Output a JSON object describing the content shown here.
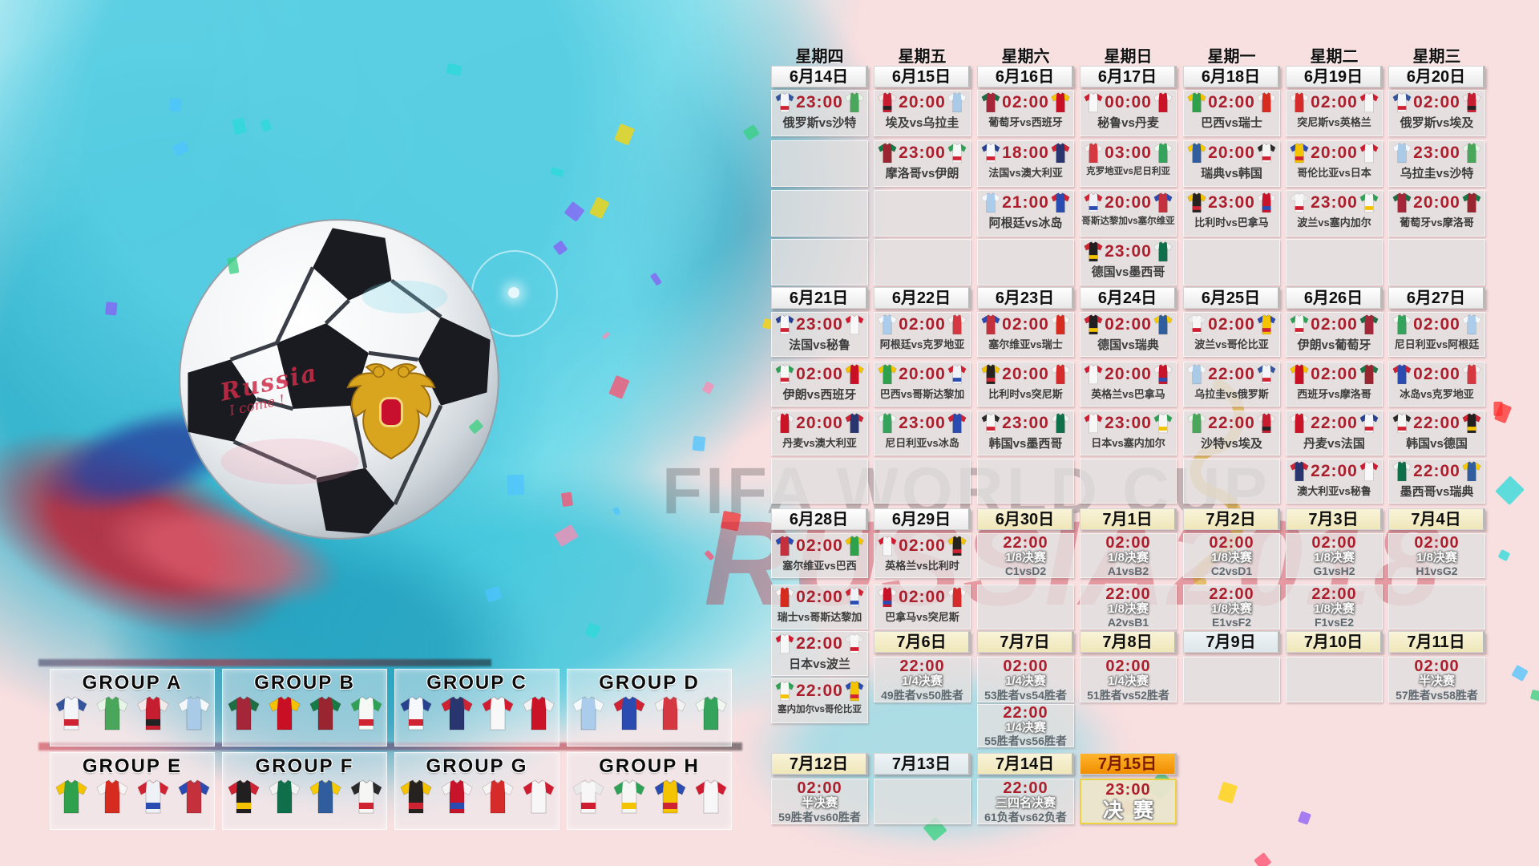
{
  "watermark": {
    "line1": "FIFA WORLD CUP",
    "line2": "RUSSIA2018"
  },
  "ball_text": {
    "line1": "Russia",
    "line2": "I come !"
  },
  "vs": "vs",
  "weekdays": [
    "星期四",
    "星期五",
    "星期六",
    "星期日",
    "星期一",
    "星期二",
    "星期三"
  ],
  "colors": {
    "time_red": "#ab1f2d",
    "header_orange": "#f59b1e",
    "knockout_cream": "#f3edcb",
    "cell_gray": "#e2dfdf",
    "pink_bg": "#f8dfe0",
    "cyan": "#5bcde0",
    "final_border": "#ecd23f"
  },
  "week1": {
    "dates": [
      [
        "6月14日",
        "plain"
      ],
      [
        "6月15日",
        "plain"
      ],
      [
        "6月16日",
        "plain"
      ],
      [
        "6月17日",
        "plain"
      ],
      [
        "6月18日",
        "plain"
      ],
      [
        "6月19日",
        "plain"
      ],
      [
        "6月20日",
        "plain"
      ]
    ],
    "rows": [
      [
        {
          "t": "23:00",
          "h": "俄罗斯",
          "a": "沙特"
        },
        {
          "t": "20:00",
          "h": "埃及",
          "a": "乌拉圭"
        },
        {
          "t": "02:00",
          "h": "葡萄牙",
          "a": "西班牙"
        },
        {
          "t": "00:00",
          "h": "秘鲁",
          "a": "丹麦"
        },
        {
          "t": "02:00",
          "h": "巴西",
          "a": "瑞士"
        },
        {
          "t": "02:00",
          "h": "突尼斯",
          "a": "英格兰"
        },
        {
          "t": "02:00",
          "h": "俄罗斯",
          "a": "埃及"
        }
      ],
      [
        {
          "e": 1
        },
        {
          "t": "23:00",
          "h": "摩洛哥",
          "a": "伊朗"
        },
        {
          "t": "18:00",
          "h": "法国",
          "a": "澳大利亚"
        },
        {
          "t": "03:00",
          "h": "克罗地亚",
          "a": "尼日利亚"
        },
        {
          "t": "20:00",
          "h": "瑞典",
          "a": "韩国"
        },
        {
          "t": "20:00",
          "h": "哥伦比亚",
          "a": "日本"
        },
        {
          "t": "23:00",
          "h": "乌拉圭",
          "a": "沙特"
        }
      ],
      [
        {
          "e": 1
        },
        {
          "e": 1
        },
        {
          "t": "21:00",
          "h": "阿根廷",
          "a": "冰岛"
        },
        {
          "t": "20:00",
          "h": "哥斯达黎加",
          "a": "塞尔维亚"
        },
        {
          "t": "23:00",
          "h": "比利时",
          "a": "巴拿马"
        },
        {
          "t": "23:00",
          "h": "波兰",
          "a": "塞内加尔"
        },
        {
          "t": "20:00",
          "h": "葡萄牙",
          "a": "摩洛哥"
        }
      ],
      [
        {
          "e": 1
        },
        {
          "e": 1
        },
        {
          "e": 1
        },
        {
          "t": "23:00",
          "h": "德国",
          "a": "墨西哥"
        },
        {
          "e": 1
        },
        {
          "e": 1
        },
        {
          "e": 1
        }
      ]
    ]
  },
  "week2": {
    "dates": [
      [
        "6月21日",
        "plain"
      ],
      [
        "6月22日",
        "plain"
      ],
      [
        "6月23日",
        "plain"
      ],
      [
        "6月24日",
        "plain"
      ],
      [
        "6月25日",
        "plain"
      ],
      [
        "6月26日",
        "plain"
      ],
      [
        "6月27日",
        "plain"
      ]
    ],
    "rows": [
      [
        {
          "t": "23:00",
          "h": "法国",
          "a": "秘鲁"
        },
        {
          "t": "02:00",
          "h": "阿根廷",
          "a": "克罗地亚"
        },
        {
          "t": "02:00",
          "h": "塞尔维亚",
          "a": "瑞士"
        },
        {
          "t": "02:00",
          "h": "德国",
          "a": "瑞典"
        },
        {
          "t": "02:00",
          "h": "波兰",
          "a": "哥伦比亚"
        },
        {
          "t": "02:00",
          "h": "伊朗",
          "a": "葡萄牙"
        },
        {
          "t": "02:00",
          "h": "尼日利亚",
          "a": "阿根廷"
        }
      ],
      [
        {
          "t": "02:00",
          "h": "伊朗",
          "a": "西班牙"
        },
        {
          "t": "20:00",
          "h": "巴西",
          "a": "哥斯达黎加"
        },
        {
          "t": "20:00",
          "h": "比利时",
          "a": "突尼斯"
        },
        {
          "t": "20:00",
          "h": "英格兰",
          "a": "巴拿马"
        },
        {
          "t": "22:00",
          "h": "乌拉圭",
          "a": "俄罗斯"
        },
        {
          "t": "02:00",
          "h": "西班牙",
          "a": "摩洛哥"
        },
        {
          "t": "02:00",
          "h": "冰岛",
          "a": "克罗地亚"
        }
      ],
      [
        {
          "t": "20:00",
          "h": "丹麦",
          "a": "澳大利亚"
        },
        {
          "t": "23:00",
          "h": "尼日利亚",
          "a": "冰岛"
        },
        {
          "t": "23:00",
          "h": "韩国",
          "a": "墨西哥"
        },
        {
          "t": "23:00",
          "h": "日本",
          "a": "塞内加尔"
        },
        {
          "t": "22:00",
          "h": "沙特",
          "a": "埃及"
        },
        {
          "t": "22:00",
          "h": "丹麦",
          "a": "法国"
        },
        {
          "t": "22:00",
          "h": "韩国",
          "a": "德国"
        }
      ],
      [
        {
          "e": 1
        },
        {
          "e": 1
        },
        {
          "e": 1
        },
        {
          "e": 1
        },
        {
          "e": 1
        },
        {
          "t": "22:00",
          "h": "澳大利亚",
          "a": "秘鲁"
        },
        {
          "t": "22:00",
          "h": "墨西哥",
          "a": "瑞典"
        }
      ]
    ]
  },
  "week3": {
    "dates": [
      [
        "6月28日",
        "plain"
      ],
      [
        "6月29日",
        "plain"
      ],
      [
        "6月30日",
        "cream"
      ],
      [
        "7月1日",
        "cream"
      ],
      [
        "7月2日",
        "cream"
      ],
      [
        "7月3日",
        "cream"
      ],
      [
        "7月4日",
        "cream"
      ]
    ],
    "rows": [
      [
        {
          "t": "02:00",
          "h": "塞尔维亚",
          "a": "巴西"
        },
        {
          "t": "02:00",
          "h": "英格兰",
          "a": "比利时"
        },
        {
          "t": "22:00",
          "s": "1/8决赛",
          "c": "C1vsD2"
        },
        {
          "t": "02:00",
          "s": "1/8决赛",
          "c": "A1vsB2"
        },
        {
          "t": "02:00",
          "s": "1/8决赛",
          "c": "C2vsD1"
        },
        {
          "t": "02:00",
          "s": "1/8决赛",
          "c": "G1vsH2"
        },
        {
          "t": "02:00",
          "s": "1/8决赛",
          "c": "H1vsG2"
        }
      ],
      [
        {
          "t": "02:00",
          "h": "瑞士",
          "a": "哥斯达黎加"
        },
        {
          "t": "02:00",
          "h": "巴拿马",
          "a": "突尼斯"
        },
        {
          "e": 1
        },
        {
          "t": "22:00",
          "s": "1/8决赛",
          "c": "A2vsB1"
        },
        {
          "t": "22:00",
          "s": "1/8决赛",
          "c": "E1vsF2"
        },
        {
          "t": "22:00",
          "s": "1/8决赛",
          "c": "F1vsE2"
        },
        {
          "e": 1
        }
      ]
    ]
  },
  "week3_ext": [
    {
      "t": "22:00",
      "h": "日本",
      "a": "波兰"
    },
    {
      "t": "22:00",
      "h": "塞内加尔",
      "a": "哥伦比亚"
    }
  ],
  "july6": {
    "dates": [
      [
        "7月6日",
        "cream"
      ],
      [
        "7月7日",
        "cream"
      ],
      [
        "7月8日",
        "cream"
      ],
      [
        "7月9日",
        "plain2"
      ],
      [
        "7月10日",
        "cream"
      ],
      [
        "7月11日",
        "cream"
      ]
    ],
    "row1": [
      {
        "t": "22:00",
        "s": "1/4决赛",
        "c": "49胜者vs50胜者"
      },
      {
        "t": "02:00",
        "s": "1/4决赛",
        "c": "53胜者vs54胜者"
      },
      {
        "t": "02:00",
        "s": "1/4决赛",
        "c": "51胜者vs52胜者"
      },
      {
        "e": 1
      },
      {
        "e": 1
      },
      {
        "t": "02:00",
        "s": "半决赛",
        "c": "57胜者vs58胜者"
      }
    ],
    "row2": [
      null,
      {
        "t": "22:00",
        "s": "1/4决赛",
        "c": "55胜者vs56胜者"
      },
      null,
      null,
      null,
      null
    ]
  },
  "july12": {
    "dates": [
      [
        "7月12日",
        "cream"
      ],
      [
        "7月13日",
        "plain2"
      ],
      [
        "7月14日",
        "cream"
      ],
      [
        "7月15日",
        "orange"
      ]
    ],
    "row": [
      {
        "t": "02:00",
        "s": "半决赛",
        "c": "59胜者vs60胜者"
      },
      {
        "e": 1
      },
      {
        "t": "22:00",
        "s": "三四名决赛",
        "c": "61负者vs62负者"
      },
      {
        "t": "23:00",
        "s": "决赛",
        "f": 1
      }
    ]
  },
  "groups": [
    {
      "name": "GROUP A",
      "teams": [
        "俄罗斯",
        "沙特",
        "埃及",
        "乌拉圭"
      ]
    },
    {
      "name": "GROUP B",
      "teams": [
        "葡萄牙",
        "西班牙",
        "摩洛哥",
        "伊朗"
      ]
    },
    {
      "name": "GROUP C",
      "teams": [
        "法国",
        "澳大利亚",
        "秘鲁",
        "丹麦"
      ]
    },
    {
      "name": "GROUP D",
      "teams": [
        "阿根廷",
        "冰岛",
        "克罗地亚",
        "尼日利亚"
      ]
    },
    {
      "name": "GROUP E",
      "teams": [
        "巴西",
        "瑞士",
        "哥斯达黎加",
        "塞尔维亚"
      ]
    },
    {
      "name": "GROUP F",
      "teams": [
        "德国",
        "墨西哥",
        "瑞典",
        "韩国"
      ]
    },
    {
      "name": "GROUP G",
      "teams": [
        "比利时",
        "巴拿马",
        "突尼斯",
        "英格兰"
      ]
    },
    {
      "name": "GROUP H",
      "teams": [
        "波兰",
        "塞内加尔",
        "哥伦比亚",
        "日本"
      ]
    }
  ],
  "teams": {
    "俄罗斯": [
      "#f3f5f9",
      "#35549c",
      "#cf2233"
    ],
    "沙特": [
      "#49a65a",
      "#e8f4e8"
    ],
    "埃及": [
      "#c41e30",
      "#f2e9e9",
      "#222222"
    ],
    "乌拉圭": [
      "#a9cbe8",
      "#f5f8fb"
    ],
    "葡萄牙": [
      "#a62639",
      "#1e6e44"
    ],
    "西班牙": [
      "#c80f24",
      "#f4c300"
    ],
    "摩洛哥": [
      "#992531",
      "#157a44"
    ],
    "伊朗": [
      "#f6f8f6",
      "#2fa055",
      "#cf2233"
    ],
    "法国": [
      "#f6f8fb",
      "#27418f",
      "#cf2233"
    ],
    "澳大利亚": [
      "#28356e",
      "#cf2233"
    ],
    "秘鲁": [
      "#f8f8f8",
      "#d01c31"
    ],
    "丹麦": [
      "#cb1327",
      "#f3f3f3"
    ],
    "阿根廷": [
      "#abcdeb",
      "#f6f9fc"
    ],
    "冰岛": [
      "#2a4bb0",
      "#cf2233"
    ],
    "克罗地亚": [
      "#d63842",
      "#f2f2f2"
    ],
    "尼日利亚": [
      "#35a35b",
      "#f2f7f2"
    ],
    "巴西": [
      "#2fa04b",
      "#f4c300"
    ],
    "瑞士": [
      "#d62b1f",
      "#f5f5f5"
    ],
    "瑞典": [
      "#2f5d9e",
      "#f7cb00"
    ],
    "韩国": [
      "#f6f6f4",
      "#2a2a2a",
      "#cf2233"
    ],
    "比利时": [
      "#26221f",
      "#f4c300",
      "#cf2233"
    ],
    "巴拿马": [
      "#c8142b",
      "#f4f4f4",
      "#2a4bb0"
    ],
    "突尼斯": [
      "#d62b2b",
      "#f5f5f5"
    ],
    "英格兰": [
      "#f7f7f7",
      "#d01c31"
    ],
    "哥伦比亚": [
      "#f5c400",
      "#2a4bb0",
      "#cf2233"
    ],
    "日本": [
      "#f7f7f7",
      "#d01c31"
    ],
    "波兰": [
      "#f7f7f7",
      "#e9e9e9",
      "#d01c31"
    ],
    "塞内加尔": [
      "#f6f6f4",
      "#2fa055",
      "#f4c300"
    ],
    "德国": [
      "#211f1f",
      "#cf2233",
      "#f4c300"
    ],
    "墨西哥": [
      "#0f6f4b",
      "#f2f2f2"
    ],
    "哥斯达黎加": [
      "#eef1f6",
      "#cf2233",
      "#2a4bb0"
    ],
    "塞尔维亚": [
      "#c4303c",
      "#2a4bb0"
    ]
  }
}
